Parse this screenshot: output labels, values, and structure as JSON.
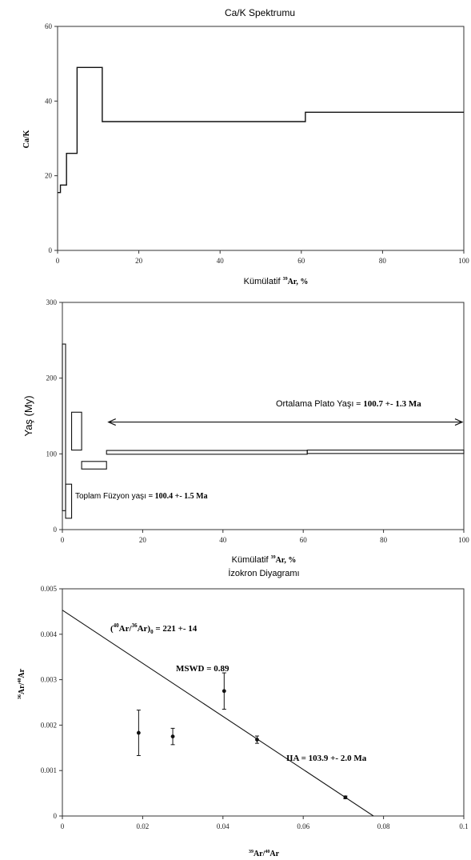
{
  "chart_data": [
    {
      "type": "line",
      "title": "Ca/K Spektrumu",
      "ylabel": "Ca/K",
      "xlabel": {
        "prefix": "Kümülatif ",
        "sup": "39",
        "suffix": "Ar, %"
      },
      "xlim": [
        0,
        100
      ],
      "ylim": [
        0,
        60
      ],
      "xticks": [
        0,
        20,
        40,
        60,
        80,
        100
      ],
      "yticks": [
        0,
        20,
        40,
        60
      ],
      "steps": [
        {
          "x0": 0,
          "x1": 0.7,
          "y": 15.5
        },
        {
          "x0": 0.7,
          "x1": 2.2,
          "y": 17.5
        },
        {
          "x0": 2.2,
          "x1": 4.8,
          "y": 26
        },
        {
          "x0": 4.8,
          "x1": 11,
          "y": 49
        },
        {
          "x0": 11,
          "x1": 61,
          "y": 34.5
        },
        {
          "x0": 61,
          "x1": 100,
          "y": 37
        }
      ]
    },
    {
      "type": "line",
      "title": "",
      "ylabel": "Yaş (My)",
      "xlabel": {
        "prefix": "Kümülatif ",
        "sup": "39",
        "suffix": "Ar, %"
      },
      "xlim": [
        0,
        100
      ],
      "ylim": [
        0,
        300
      ],
      "xticks": [
        0,
        20,
        40,
        60,
        80,
        100
      ],
      "yticks": [
        0,
        100,
        200,
        300
      ],
      "boxes": [
        {
          "x0": 0,
          "x1": 0.8,
          "ylo": 25,
          "yhi": 245
        },
        {
          "x0": 0.8,
          "x1": 2.3,
          "ylo": 15,
          "yhi": 60
        },
        {
          "x0": 2.3,
          "x1": 4.8,
          "ylo": 105,
          "yhi": 155
        },
        {
          "x0": 4.8,
          "x1": 11,
          "ylo": 80,
          "yhi": 90
        },
        {
          "x0": 11,
          "x1": 61,
          "ylo": 99.5,
          "yhi": 104.5
        },
        {
          "x0": 61,
          "x1": 100,
          "ylo": 100.5,
          "yhi": 105
        }
      ],
      "plateau_arrow": {
        "x0": 11.5,
        "x1": 100,
        "y": 142
      },
      "annotations": {
        "plateau_label": "Ortalama Plato Yaşı",
        "plateau_value": " = 100.7 +- 1.3 Ma",
        "fusion_label": "Toplam Füzyon yaşı",
        "fusion_value": " = 100.4 +- 1.5 Ma"
      }
    },
    {
      "type": "scatter",
      "title": "İzokron Diyagramı",
      "ylabel": {
        "sup1": "36",
        "mid": "Ar/",
        "sup2": "40",
        "end": "Ar"
      },
      "xlabel": {
        "sup1": "39",
        "mid": "Ar/",
        "sup2": "40",
        "end": "Ar"
      },
      "xlim": [
        0,
        0.1
      ],
      "ylim": [
        0,
        0.005
      ],
      "xticks": [
        "0",
        "0.02",
        "0.04",
        "0.06",
        "0.08",
        "0.1"
      ],
      "yticks": [
        "0",
        "0.001",
        "0.002",
        "0.003",
        "0.004",
        "0.005"
      ],
      "points": [
        {
          "x": 0.019,
          "y": 0.00183,
          "err": 0.0005
        },
        {
          "x": 0.0275,
          "y": 0.00175,
          "err": 0.00018
        },
        {
          "x": 0.0403,
          "y": 0.00275,
          "err": 0.0004
        },
        {
          "x": 0.0485,
          "y": 0.00168,
          "err": 8e-05
        },
        {
          "x": 0.0705,
          "y": 0.00041,
          "err": 3e-05
        }
      ],
      "fit_line": {
        "x0": 0,
        "y0": 0.00453,
        "x1": 0.0775,
        "y1": 0
      },
      "annotations": {
        "intercept": {
          "open": "(",
          "sup1": "40",
          "mid": "Ar/",
          "sup2": "36",
          "close": "Ar)",
          "sub": "0",
          "value": " = 221 +- 14"
        },
        "mswd": "MSWD = 0.89",
        "age": "IIA = 103.9 +- 2.0 Ma"
      }
    }
  ]
}
